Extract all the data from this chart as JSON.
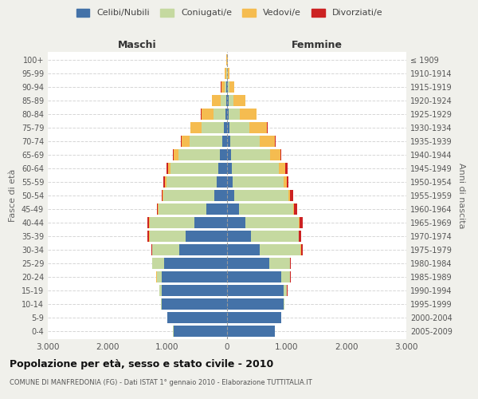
{
  "age_groups": [
    "0-4",
    "5-9",
    "10-14",
    "15-19",
    "20-24",
    "25-29",
    "30-34",
    "35-39",
    "40-44",
    "45-49",
    "50-54",
    "55-59",
    "60-64",
    "65-69",
    "70-74",
    "75-79",
    "80-84",
    "85-89",
    "90-94",
    "95-99",
    "100+"
  ],
  "birth_years": [
    "2005-2009",
    "2000-2004",
    "1995-1999",
    "1990-1994",
    "1985-1989",
    "1980-1984",
    "1975-1979",
    "1970-1974",
    "1965-1969",
    "1960-1964",
    "1955-1959",
    "1950-1954",
    "1945-1949",
    "1940-1944",
    "1935-1939",
    "1930-1934",
    "1925-1929",
    "1920-1924",
    "1915-1919",
    "1910-1914",
    "≤ 1909"
  ],
  "colors": {
    "celibe": "#4472a8",
    "coniugato": "#c5d9a0",
    "vedovo": "#f5bc50",
    "divorziato": "#cc2222"
  },
  "maschi": {
    "celibe": [
      900,
      1000,
      1100,
      1100,
      1100,
      1050,
      800,
      700,
      550,
      350,
      220,
      170,
      150,
      120,
      80,
      50,
      30,
      20,
      8,
      5,
      2
    ],
    "coniugato": [
      5,
      5,
      10,
      30,
      80,
      200,
      450,
      600,
      750,
      800,
      850,
      850,
      800,
      700,
      550,
      380,
      200,
      90,
      30,
      10,
      3
    ],
    "vedovo": [
      0,
      0,
      0,
      5,
      5,
      5,
      5,
      5,
      5,
      5,
      10,
      20,
      40,
      80,
      130,
      180,
      200,
      140,
      60,
      20,
      5
    ],
    "divorziato": [
      0,
      0,
      0,
      5,
      5,
      5,
      15,
      25,
      30,
      25,
      20,
      30,
      30,
      10,
      8,
      5,
      5,
      5,
      3,
      2,
      1
    ]
  },
  "femmine": {
    "nubile": [
      800,
      900,
      950,
      950,
      900,
      700,
      550,
      400,
      300,
      200,
      120,
      90,
      80,
      70,
      50,
      40,
      30,
      20,
      8,
      5,
      2
    ],
    "coniugata": [
      5,
      5,
      15,
      50,
      150,
      350,
      680,
      800,
      900,
      900,
      900,
      850,
      780,
      650,
      500,
      330,
      180,
      80,
      30,
      10,
      3
    ],
    "vedova": [
      0,
      0,
      0,
      5,
      5,
      5,
      5,
      5,
      10,
      15,
      30,
      60,
      110,
      170,
      250,
      300,
      280,
      200,
      80,
      20,
      5
    ],
    "divorziata": [
      0,
      0,
      0,
      5,
      5,
      10,
      30,
      40,
      60,
      60,
      50,
      30,
      40,
      15,
      15,
      10,
      8,
      5,
      3,
      2,
      1
    ]
  },
  "xlim": 3000,
  "xlabel_maschi": "Maschi",
  "xlabel_femmine": "Femmine",
  "ylabel_left": "Fasce di età",
  "ylabel_right": "Anni di nascita",
  "title": "Popolazione per età, sesso e stato civile - 2010",
  "subtitle": "COMUNE DI MANFREDONIA (FG) - Dati ISTAT 1° gennaio 2010 - Elaborazione TUTTITALIA.IT",
  "legend_labels": [
    "Celibi/Nubili",
    "Coniugati/e",
    "Vedovi/e",
    "Divorziati/e"
  ],
  "bg_color": "#f0f0eb",
  "plot_bg": "#ffffff"
}
